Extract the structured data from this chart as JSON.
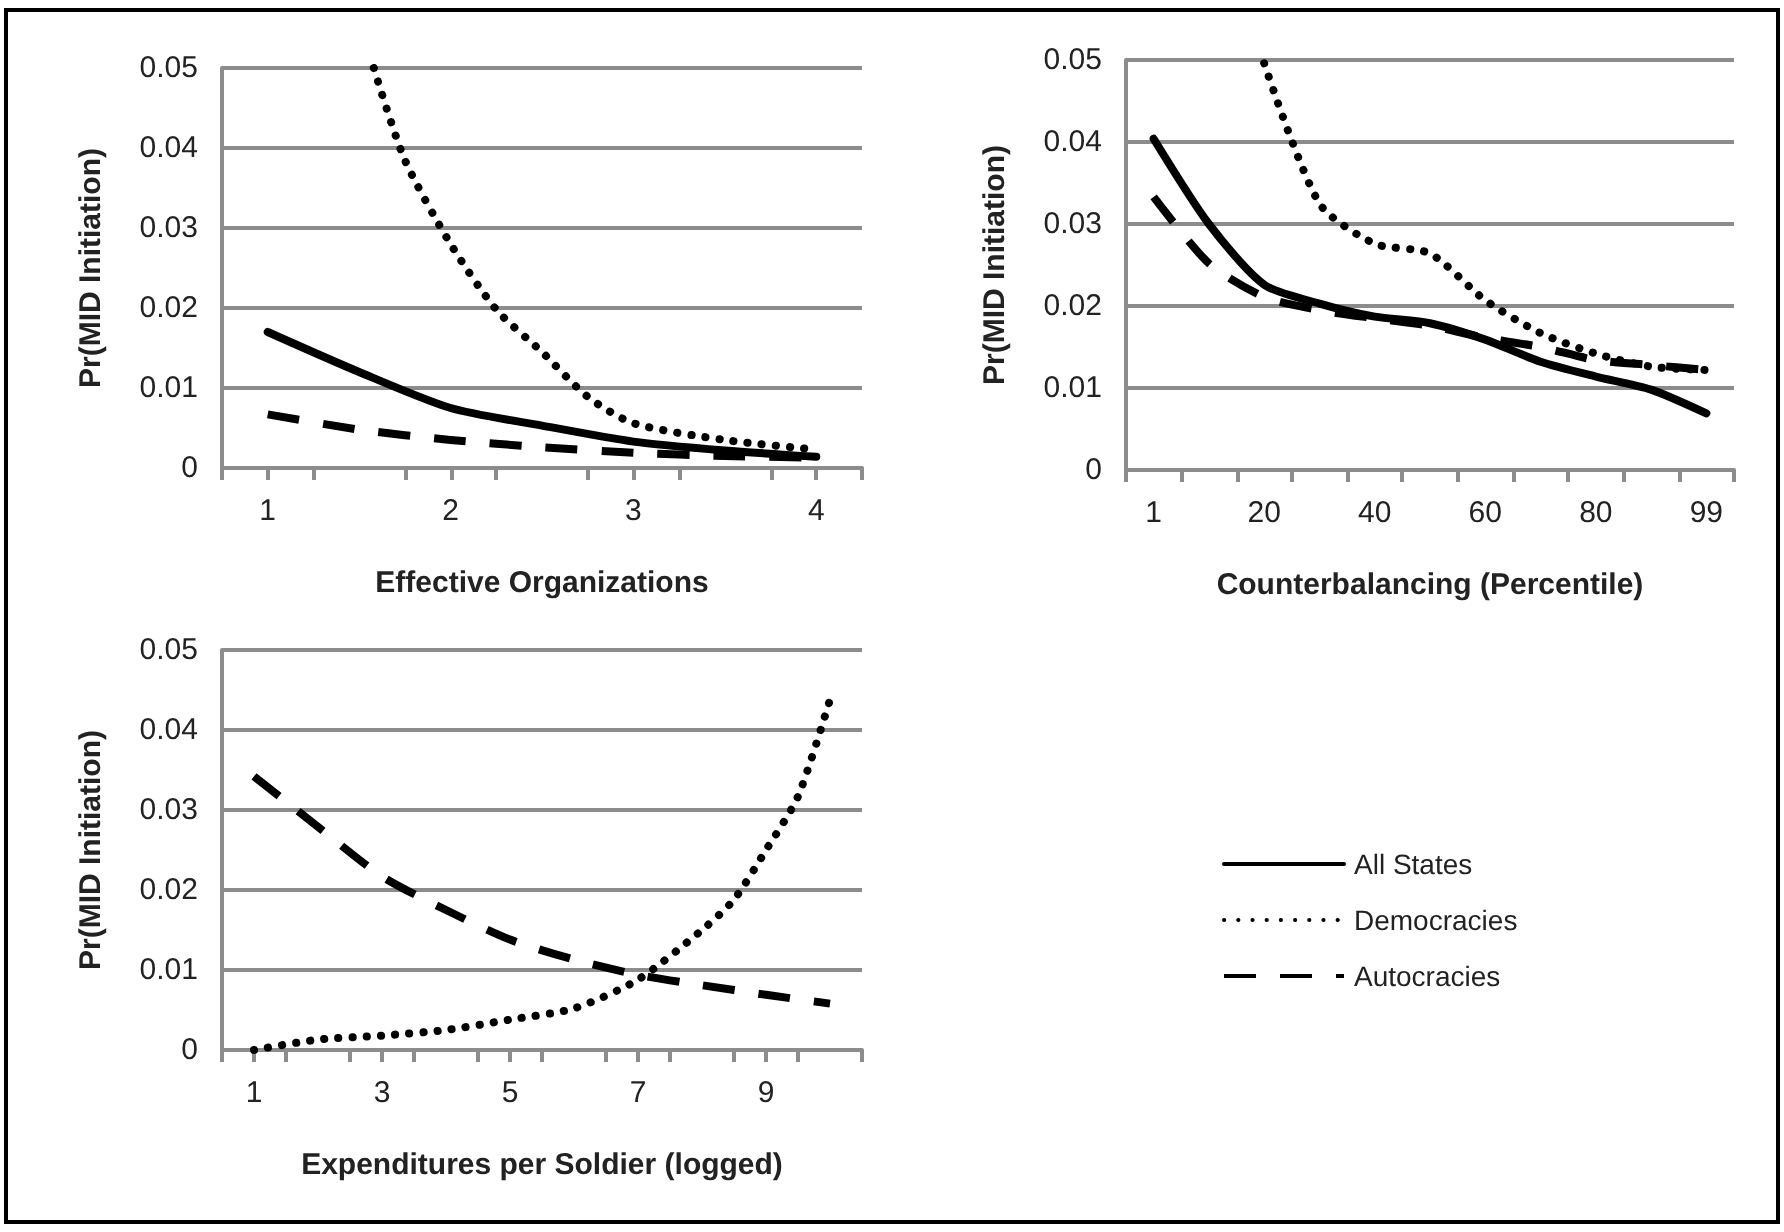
{
  "chart_data": [
    {
      "type": "line",
      "xlabel": "Effective Organizations",
      "ylabel": "Pr(MID Initiation)",
      "xlim": [
        0.75,
        4.25
      ],
      "xticks": [
        {
          "value": 0.75,
          "label": null
        },
        1,
        {
          "value": 1.25,
          "label": null
        },
        {
          "value": 1.75,
          "label": null
        },
        2,
        {
          "value": 2.25,
          "label": null
        },
        {
          "value": 2.75,
          "label": null
        },
        3,
        {
          "value": 3.25,
          "label": null
        },
        {
          "value": 3.75,
          "label": null
        },
        4,
        {
          "value": 4.25,
          "label": null
        }
      ],
      "ylim": [
        0,
        0.05
      ],
      "yticks": [
        0,
        0.01,
        0.02,
        0.03,
        0.04,
        0.05
      ],
      "grid": "y",
      "marker": "none",
      "legend": "bottom right",
      "series": [
        {
          "name": "All States",
          "color": "#000000",
          "line_style": "solid",
          "x": [
            1,
            1.5,
            2,
            2.5,
            3,
            3.5,
            4
          ],
          "values": [
            0.017,
            0.012,
            0.0075,
            0.0053,
            0.0033,
            0.0022,
            0.0014
          ]
        },
        {
          "name": "Democracies",
          "color": "#000000",
          "line_style": "dotted",
          "x": [
            1.58,
            1.75,
            2,
            2.25,
            2.5,
            2.75,
            3,
            3.5,
            4
          ],
          "values": [
            0.05,
            0.0385,
            0.028,
            0.0198,
            0.0145,
            0.0089,
            0.0056,
            0.0035,
            0.0023
          ]
        },
        {
          "name": "Autocracies",
          "color": "#000000",
          "line_style": "dashed",
          "x": [
            1,
            1.5,
            2,
            2.5,
            3,
            3.5,
            4
          ],
          "values": [
            0.0067,
            0.0048,
            0.0035,
            0.0026,
            0.0019,
            0.0015,
            0.0013
          ]
        }
      ]
    },
    {
      "type": "line",
      "xlabel": "Counterbalancing (Percentile)",
      "ylabel": "Pr(MID Initiation)",
      "categories": [
        "1",
        null,
        "20",
        null,
        "40",
        null,
        "60",
        null,
        "80",
        null,
        "99"
      ],
      "ylim": [
        0,
        0.05
      ],
      "yticks": [
        0,
        0.01,
        0.02,
        0.03,
        0.04,
        0.05
      ],
      "grid": "y",
      "marker": "none",
      "series": [
        {
          "name": "All States",
          "color": "#000000",
          "line_style": "solid",
          "values": [
            0.0404,
            0.03,
            0.0226,
            0.0203,
            0.0187,
            0.0179,
            0.0159,
            0.0132,
            0.0114,
            0.0098,
            0.0069
          ]
        },
        {
          "name": "Democracies",
          "color": "#000000",
          "line_style": "dotted",
          "values": [
            null,
            null,
            0.0496,
            0.0325,
            0.0276,
            0.0264,
            0.0207,
            0.0167,
            0.0142,
            0.0126,
            0.0122
          ]
        },
        {
          "name": "Autocracies",
          "color": "#000000",
          "line_style": "dashed",
          "values": [
            0.0333,
            0.0252,
            0.0211,
            0.0195,
            0.0185,
            0.0176,
            0.0161,
            0.015,
            0.0134,
            0.0128,
            0.0122
          ]
        }
      ]
    },
    {
      "type": "line",
      "xlabel": "Expenditures per Soldier (logged)",
      "ylabel": "Pr(MID Initiation)",
      "xlim": [
        0.5,
        10.5
      ],
      "xticks": [
        {
          "value": 0.5,
          "label": null
        },
        1,
        {
          "value": 1.5,
          "label": null
        },
        {
          "value": 2.5,
          "label": null
        },
        3,
        {
          "value": 3.5,
          "label": null
        },
        {
          "value": 4.5,
          "label": null
        },
        5,
        {
          "value": 5.5,
          "label": null
        },
        {
          "value": 6.5,
          "label": null
        },
        7,
        {
          "value": 7.5,
          "label": null
        },
        {
          "value": 8.5,
          "label": null
        },
        9,
        {
          "value": 9.5,
          "label": null
        },
        {
          "value": 10.5,
          "label": null
        }
      ],
      "ylim": [
        0,
        0.05
      ],
      "yticks": [
        0,
        0.01,
        0.02,
        0.03,
        0.04,
        0.05
      ],
      "grid": "y",
      "marker": "none",
      "series": [
        {
          "name": "Democracies",
          "color": "#000000",
          "line_style": "dotted",
          "x": [
            1,
            2,
            3,
            4,
            5,
            6,
            7,
            8,
            8.5,
            9,
            9.5,
            10
          ],
          "values": [
            0,
            0.0013,
            0.0018,
            0.0025,
            0.0038,
            0.0052,
            0.0088,
            0.015,
            0.0188,
            0.025,
            0.0317,
            0.0438
          ]
        },
        {
          "name": "Autocracies",
          "color": "#000000",
          "line_style": "dashed",
          "x": [
            1,
            2,
            3,
            4,
            5,
            6,
            7,
            8,
            9,
            10
          ],
          "values": [
            0.0342,
            0.0279,
            0.0217,
            0.0175,
            0.0138,
            0.0113,
            0.0094,
            0.0081,
            0.0069,
            0.0058
          ]
        }
      ]
    }
  ]
}
